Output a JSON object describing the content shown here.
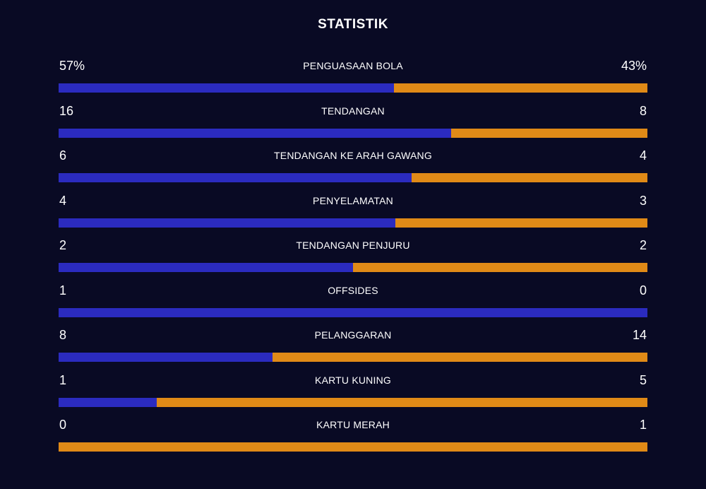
{
  "title": "STATISTIK",
  "colors": {
    "background": "#090a24",
    "home": "#2b2bbf",
    "away": "#e08a17",
    "text": "#ffffff"
  },
  "stats": [
    {
      "label": "PENGUASAAN BOLA",
      "home": "57%",
      "away": "43%",
      "home_value": 57,
      "away_value": 43
    },
    {
      "label": "TENDANGAN",
      "home": "16",
      "away": "8",
      "home_value": 16,
      "away_value": 8
    },
    {
      "label": "TENDANGAN KE ARAH GAWANG",
      "home": "6",
      "away": "4",
      "home_value": 6,
      "away_value": 4
    },
    {
      "label": "PENYELAMATAN",
      "home": "4",
      "away": "3",
      "home_value": 4,
      "away_value": 3
    },
    {
      "label": "TENDANGAN PENJURU",
      "home": "2",
      "away": "2",
      "home_value": 2,
      "away_value": 2
    },
    {
      "label": "OFFSIDES",
      "home": "1",
      "away": "0",
      "home_value": 1,
      "away_value": 0
    },
    {
      "label": "PELANGGARAN",
      "home": "8",
      "away": "14",
      "home_value": 8,
      "away_value": 14
    },
    {
      "label": "KARTU KUNING",
      "home": "1",
      "away": "5",
      "home_value": 1,
      "away_value": 5
    },
    {
      "label": "KARTU MERAH",
      "home": "0",
      "away": "1",
      "home_value": 0,
      "away_value": 1
    }
  ]
}
